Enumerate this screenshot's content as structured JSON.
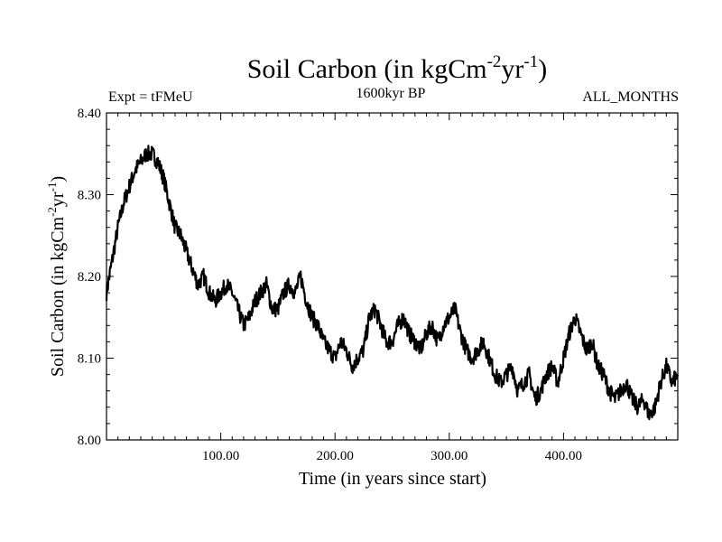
{
  "chart_data": {
    "type": "line",
    "title": "Soil Carbon (in kgCm",
    "title_sup1": "-2",
    "title_mid": "yr",
    "title_sup2": "-1",
    "title_end": ")",
    "subtitle_left": "Expt = tFMeU",
    "subtitle_center": "1600kyr BP",
    "subtitle_right": "ALL_MONTHS",
    "xlabel": "Time (in years since start)",
    "ylabel": "Soil Carbon (in kgCm",
    "ylabel_sup1": "-2",
    "ylabel_mid": "yr",
    "ylabel_sup2": "-1",
    "ylabel_end": ")",
    "xlim": [
      0,
      500
    ],
    "ylim": [
      8.0,
      8.4
    ],
    "xticks": [
      "100.00",
      "200.00",
      "300.00",
      "400.00"
    ],
    "xtick_values": [
      100,
      200,
      300,
      400
    ],
    "yticks": [
      "8.00",
      "8.10",
      "8.20",
      "8.30",
      "8.40"
    ],
    "ytick_values": [
      8.0,
      8.1,
      8.2,
      8.3,
      8.4
    ],
    "series_color": "#000000",
    "x": [
      0,
      5,
      10,
      15,
      20,
      25,
      30,
      35,
      40,
      45,
      50,
      55,
      60,
      65,
      70,
      75,
      80,
      85,
      90,
      95,
      100,
      105,
      110,
      115,
      120,
      125,
      130,
      135,
      140,
      145,
      150,
      155,
      160,
      165,
      170,
      175,
      180,
      185,
      190,
      195,
      200,
      205,
      210,
      215,
      220,
      225,
      230,
      235,
      240,
      245,
      250,
      255,
      260,
      265,
      270,
      275,
      280,
      285,
      290,
      295,
      300,
      305,
      310,
      315,
      320,
      325,
      330,
      335,
      340,
      345,
      350,
      355,
      360,
      365,
      370,
      375,
      380,
      385,
      390,
      395,
      400,
      405,
      410,
      415,
      420,
      425,
      430,
      435,
      440,
      445,
      450,
      455,
      460,
      465,
      470,
      475,
      480,
      485,
      490,
      495,
      500
    ],
    "values": [
      8.18,
      8.22,
      8.26,
      8.29,
      8.31,
      8.33,
      8.34,
      8.35,
      8.35,
      8.34,
      8.32,
      8.29,
      8.26,
      8.25,
      8.23,
      8.21,
      8.19,
      8.2,
      8.18,
      8.17,
      8.18,
      8.19,
      8.18,
      8.16,
      8.14,
      8.15,
      8.17,
      8.18,
      8.19,
      8.16,
      8.16,
      8.18,
      8.19,
      8.18,
      8.2,
      8.17,
      8.15,
      8.14,
      8.12,
      8.11,
      8.1,
      8.12,
      8.11,
      8.09,
      8.1,
      8.11,
      8.15,
      8.16,
      8.14,
      8.12,
      8.12,
      8.14,
      8.15,
      8.13,
      8.12,
      8.11,
      8.13,
      8.14,
      8.12,
      8.14,
      8.15,
      8.16,
      8.13,
      8.11,
      8.1,
      8.11,
      8.12,
      8.1,
      8.08,
      8.07,
      8.08,
      8.09,
      8.06,
      8.07,
      8.08,
      8.05,
      8.06,
      8.08,
      8.09,
      8.07,
      8.1,
      8.13,
      8.15,
      8.13,
      8.11,
      8.12,
      8.09,
      8.08,
      8.06,
      8.05,
      8.06,
      8.07,
      8.05,
      8.04,
      8.05,
      8.03,
      8.04,
      8.07,
      8.09,
      8.07,
      8.08
    ]
  }
}
